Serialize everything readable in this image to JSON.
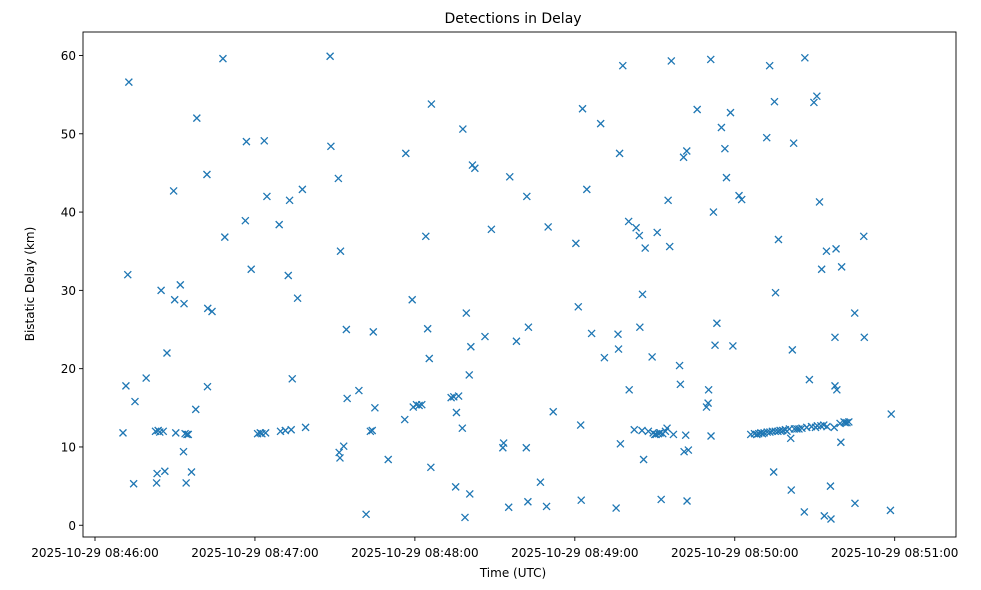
{
  "chart_data": {
    "type": "scatter",
    "title": "Detections in Delay",
    "xlabel": "Time (UTC)",
    "ylabel": "Bistatic Delay (km)",
    "x_unit": "seconds after 2025-10-29 08:46:00",
    "xlim": [
      -4.5,
      323
    ],
    "ylim": [
      -1.5,
      63
    ],
    "x_ticks": [
      {
        "value": 0,
        "label": "2025-10-29 08:46:00"
      },
      {
        "value": 60,
        "label": "2025-10-29 08:47:00"
      },
      {
        "value": 120,
        "label": "2025-10-29 08:48:00"
      },
      {
        "value": 180,
        "label": "2025-10-29 08:49:00"
      },
      {
        "value": 240,
        "label": "2025-10-29 08:50:00"
      },
      {
        "value": 300,
        "label": "2025-10-29 08:51:00"
      }
    ],
    "y_ticks": [
      0,
      10,
      20,
      30,
      40,
      50,
      60
    ],
    "marker": "x",
    "color": "#1f77b4",
    "grid": false,
    "points": [
      [
        10.5,
        11.8
      ],
      [
        11.6,
        17.8
      ],
      [
        12.3,
        32.0
      ],
      [
        12.7,
        56.6
      ],
      [
        14.5,
        5.3
      ],
      [
        15.0,
        15.8
      ],
      [
        19.2,
        18.8
      ],
      [
        22.7,
        12.0
      ],
      [
        23.1,
        5.4
      ],
      [
        23.3,
        6.6
      ],
      [
        23.7,
        12.1
      ],
      [
        24.3,
        11.9
      ],
      [
        24.8,
        30.0
      ],
      [
        25.6,
        12.0
      ],
      [
        26.2,
        6.9
      ],
      [
        27.0,
        22.0
      ],
      [
        29.5,
        42.7
      ],
      [
        29.9,
        28.8
      ],
      [
        30.3,
        11.8
      ],
      [
        32.0,
        30.7
      ],
      [
        33.2,
        9.4
      ],
      [
        33.4,
        28.3
      ],
      [
        33.8,
        11.7
      ],
      [
        34.2,
        5.4
      ],
      [
        34.5,
        11.6
      ],
      [
        35.0,
        11.6
      ],
      [
        36.2,
        6.8
      ],
      [
        37.8,
        14.8
      ],
      [
        38.2,
        52.0
      ],
      [
        42.0,
        44.8
      ],
      [
        42.2,
        17.7
      ],
      [
        42.3,
        27.7
      ],
      [
        43.9,
        27.3
      ],
      [
        48.0,
        59.6
      ],
      [
        48.7,
        36.8
      ],
      [
        56.4,
        38.9
      ],
      [
        56.8,
        49.0
      ],
      [
        58.6,
        32.7
      ],
      [
        61.0,
        11.7
      ],
      [
        62.0,
        11.8
      ],
      [
        62.6,
        11.7
      ],
      [
        63.5,
        49.1
      ],
      [
        64.0,
        11.8
      ],
      [
        64.5,
        42.0
      ],
      [
        69.1,
        38.4
      ],
      [
        69.6,
        12.0
      ],
      [
        71.4,
        12.1
      ],
      [
        72.5,
        31.9
      ],
      [
        73.0,
        41.5
      ],
      [
        73.6,
        12.2
      ],
      [
        74.0,
        18.7
      ],
      [
        76.0,
        29.0
      ],
      [
        77.8,
        42.9
      ],
      [
        79.0,
        12.5
      ],
      [
        88.2,
        59.9
      ],
      [
        88.5,
        48.4
      ],
      [
        91.3,
        44.3
      ],
      [
        91.6,
        9.3
      ],
      [
        91.9,
        8.6
      ],
      [
        92.1,
        35.0
      ],
      [
        93.3,
        10.1
      ],
      [
        94.3,
        25.0
      ],
      [
        94.6,
        16.2
      ],
      [
        99.0,
        17.2
      ],
      [
        101.7,
        1.4
      ],
      [
        103.3,
        12.0
      ],
      [
        104.0,
        12.1
      ],
      [
        104.4,
        24.7
      ],
      [
        105.0,
        15.0
      ],
      [
        110.0,
        8.4
      ],
      [
        116.2,
        13.5
      ],
      [
        116.6,
        47.5
      ],
      [
        119.0,
        28.8
      ],
      [
        119.4,
        15.1
      ],
      [
        120.6,
        15.4
      ],
      [
        121.6,
        15.3
      ],
      [
        122.6,
        15.4
      ],
      [
        124.1,
        36.9
      ],
      [
        124.8,
        25.1
      ],
      [
        125.4,
        21.3
      ],
      [
        126.0,
        7.4
      ],
      [
        126.2,
        53.8
      ],
      [
        133.6,
        16.3
      ],
      [
        134.6,
        16.4
      ],
      [
        135.3,
        4.9
      ],
      [
        135.6,
        14.4
      ],
      [
        136.4,
        16.5
      ],
      [
        137.8,
        12.4
      ],
      [
        138.0,
        50.6
      ],
      [
        138.8,
        1.0
      ],
      [
        139.3,
        27.1
      ],
      [
        140.4,
        19.2
      ],
      [
        140.6,
        4.0
      ],
      [
        141.0,
        22.8
      ],
      [
        141.6,
        46.0
      ],
      [
        142.5,
        45.6
      ],
      [
        146.3,
        24.1
      ],
      [
        148.7,
        37.8
      ],
      [
        153.0,
        9.9
      ],
      [
        153.3,
        10.5
      ],
      [
        155.2,
        2.3
      ],
      [
        155.6,
        44.5
      ],
      [
        158.1,
        23.5
      ],
      [
        161.8,
        9.9
      ],
      [
        162.0,
        42.0
      ],
      [
        162.4,
        3.0
      ],
      [
        162.6,
        25.3
      ],
      [
        167.1,
        5.5
      ],
      [
        169.4,
        2.4
      ],
      [
        170.0,
        38.1
      ],
      [
        171.9,
        14.5
      ],
      [
        180.4,
        36.0
      ],
      [
        181.3,
        27.9
      ],
      [
        182.2,
        12.8
      ],
      [
        182.4,
        3.2
      ],
      [
        182.9,
        53.2
      ],
      [
        184.5,
        42.9
      ],
      [
        186.3,
        24.5
      ],
      [
        189.7,
        51.3
      ],
      [
        191.1,
        21.4
      ],
      [
        195.5,
        2.2
      ],
      [
        196.2,
        24.4
      ],
      [
        196.4,
        22.5
      ],
      [
        196.8,
        47.5
      ],
      [
        197.1,
        10.4
      ],
      [
        198.0,
        58.7
      ],
      [
        200.2,
        38.8
      ],
      [
        200.4,
        17.3
      ],
      [
        202.3,
        12.2
      ],
      [
        203.0,
        38.0
      ],
      [
        204.2,
        37.0
      ],
      [
        204.4,
        25.3
      ],
      [
        205.2,
        12.1
      ],
      [
        205.4,
        29.5
      ],
      [
        205.8,
        8.4
      ],
      [
        206.4,
        35.4
      ],
      [
        207.6,
        12.0
      ],
      [
        209.0,
        21.5
      ],
      [
        209.4,
        11.8
      ],
      [
        210.0,
        11.6
      ],
      [
        210.5,
        11.6
      ],
      [
        210.9,
        37.4
      ],
      [
        211.4,
        11.7
      ],
      [
        212.0,
        11.8
      ],
      [
        212.4,
        3.3
      ],
      [
        213.0,
        11.7
      ],
      [
        214.0,
        12.0
      ],
      [
        214.6,
        12.4
      ],
      [
        215.0,
        41.5
      ],
      [
        215.6,
        35.6
      ],
      [
        216.2,
        59.3
      ],
      [
        217.0,
        11.6
      ],
      [
        219.3,
        20.4
      ],
      [
        219.6,
        18.0
      ],
      [
        220.8,
        47.0
      ],
      [
        221.0,
        9.4
      ],
      [
        221.6,
        11.5
      ],
      [
        222.0,
        47.8
      ],
      [
        222.1,
        3.1
      ],
      [
        222.6,
        9.6
      ],
      [
        225.9,
        53.1
      ],
      [
        229.4,
        15.1
      ],
      [
        230.0,
        15.6
      ],
      [
        230.2,
        17.3
      ],
      [
        231.0,
        59.5
      ],
      [
        231.1,
        11.4
      ],
      [
        232.0,
        40.0
      ],
      [
        232.6,
        23.0
      ],
      [
        233.3,
        25.8
      ],
      [
        235.0,
        50.8
      ],
      [
        236.3,
        48.1
      ],
      [
        236.9,
        44.4
      ],
      [
        238.4,
        52.7
      ],
      [
        239.3,
        22.9
      ],
      [
        241.6,
        42.1
      ],
      [
        242.6,
        41.6
      ],
      [
        246.0,
        11.6
      ],
      [
        247.4,
        11.7
      ],
      [
        248.3,
        11.6
      ],
      [
        249.0,
        11.7
      ],
      [
        249.8,
        11.8
      ],
      [
        250.4,
        11.7
      ],
      [
        251.0,
        11.8
      ],
      [
        252.0,
        49.5
      ],
      [
        252.2,
        11.9
      ],
      [
        253.1,
        58.7
      ],
      [
        253.2,
        11.9
      ],
      [
        254.1,
        12.0
      ],
      [
        254.6,
        6.8
      ],
      [
        254.9,
        54.1
      ],
      [
        255.2,
        12.0
      ],
      [
        255.3,
        29.7
      ],
      [
        256.2,
        12.0
      ],
      [
        256.4,
        36.5
      ],
      [
        257.0,
        12.1
      ],
      [
        258.0,
        12.1
      ],
      [
        259.0,
        12.2
      ],
      [
        259.6,
        12.0
      ],
      [
        260.5,
        12.3
      ],
      [
        261.0,
        11.1
      ],
      [
        261.2,
        4.5
      ],
      [
        261.6,
        22.4
      ],
      [
        262.1,
        48.8
      ],
      [
        262.4,
        12.3
      ],
      [
        263.3,
        12.3
      ],
      [
        264.1,
        12.3
      ],
      [
        265.2,
        12.4
      ],
      [
        266.1,
        1.7
      ],
      [
        266.3,
        59.7
      ],
      [
        267.0,
        12.5
      ],
      [
        268.0,
        18.6
      ],
      [
        268.8,
        12.6
      ],
      [
        269.7,
        54.0
      ],
      [
        270.3,
        12.5
      ],
      [
        270.8,
        54.8
      ],
      [
        271.0,
        12.7
      ],
      [
        271.8,
        41.3
      ],
      [
        272.3,
        12.7
      ],
      [
        272.6,
        32.7
      ],
      [
        273.4,
        12.8
      ],
      [
        273.6,
        1.2
      ],
      [
        274.4,
        35.0
      ],
      [
        274.6,
        12.6
      ],
      [
        275.9,
        5.0
      ],
      [
        276.1,
        0.8
      ],
      [
        277.3,
        12.5
      ],
      [
        277.6,
        17.8
      ],
      [
        277.6,
        24.0
      ],
      [
        278.0,
        35.3
      ],
      [
        278.3,
        17.3
      ],
      [
        279.5,
        13.0
      ],
      [
        279.8,
        10.6
      ],
      [
        280.1,
        33.0
      ],
      [
        281.0,
        13.2
      ],
      [
        281.4,
        13.1
      ],
      [
        282.1,
        13.1
      ],
      [
        282.8,
        13.2
      ],
      [
        285.0,
        27.1
      ],
      [
        285.1,
        2.8
      ],
      [
        288.4,
        36.9
      ],
      [
        288.6,
        24.0
      ],
      [
        298.4,
        1.9
      ],
      [
        298.7,
        14.2
      ]
    ]
  }
}
